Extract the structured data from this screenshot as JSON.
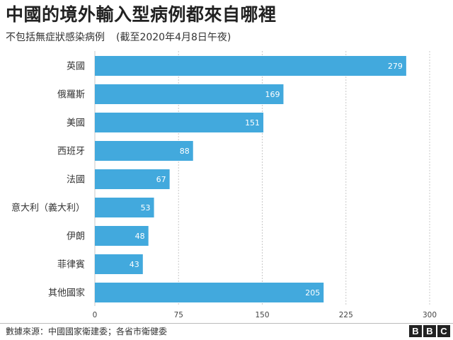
{
  "title": "中國的境外輸入型病例都來自哪裡",
  "subtitle": "不包括無症狀感染病例",
  "subtitle_note": "(截至2020年4月8日午夜)",
  "source": "數據來源：中國國家衛建委；各省市衛健委",
  "logo": {
    "letters": [
      "B",
      "B",
      "C"
    ]
  },
  "colors": {
    "bar": "#42a9dd",
    "text": "#222222",
    "grid": "#c8c8c8"
  },
  "chart_data": {
    "type": "bar",
    "orientation": "horizontal",
    "categories": [
      "英國",
      "俄羅斯",
      "美國",
      "西班牙",
      "法國",
      "意大利（義大利）",
      "伊朗",
      "菲律賓",
      "其他國家"
    ],
    "values": [
      279,
      169,
      151,
      88,
      67,
      53,
      48,
      43,
      205
    ],
    "title": "中國的境外輸入型病例都來自哪裡",
    "xlabel": "",
    "ylabel": "",
    "xlim": [
      0,
      300
    ],
    "xticks": [
      0,
      75,
      150,
      225,
      300
    ],
    "grid": true
  }
}
